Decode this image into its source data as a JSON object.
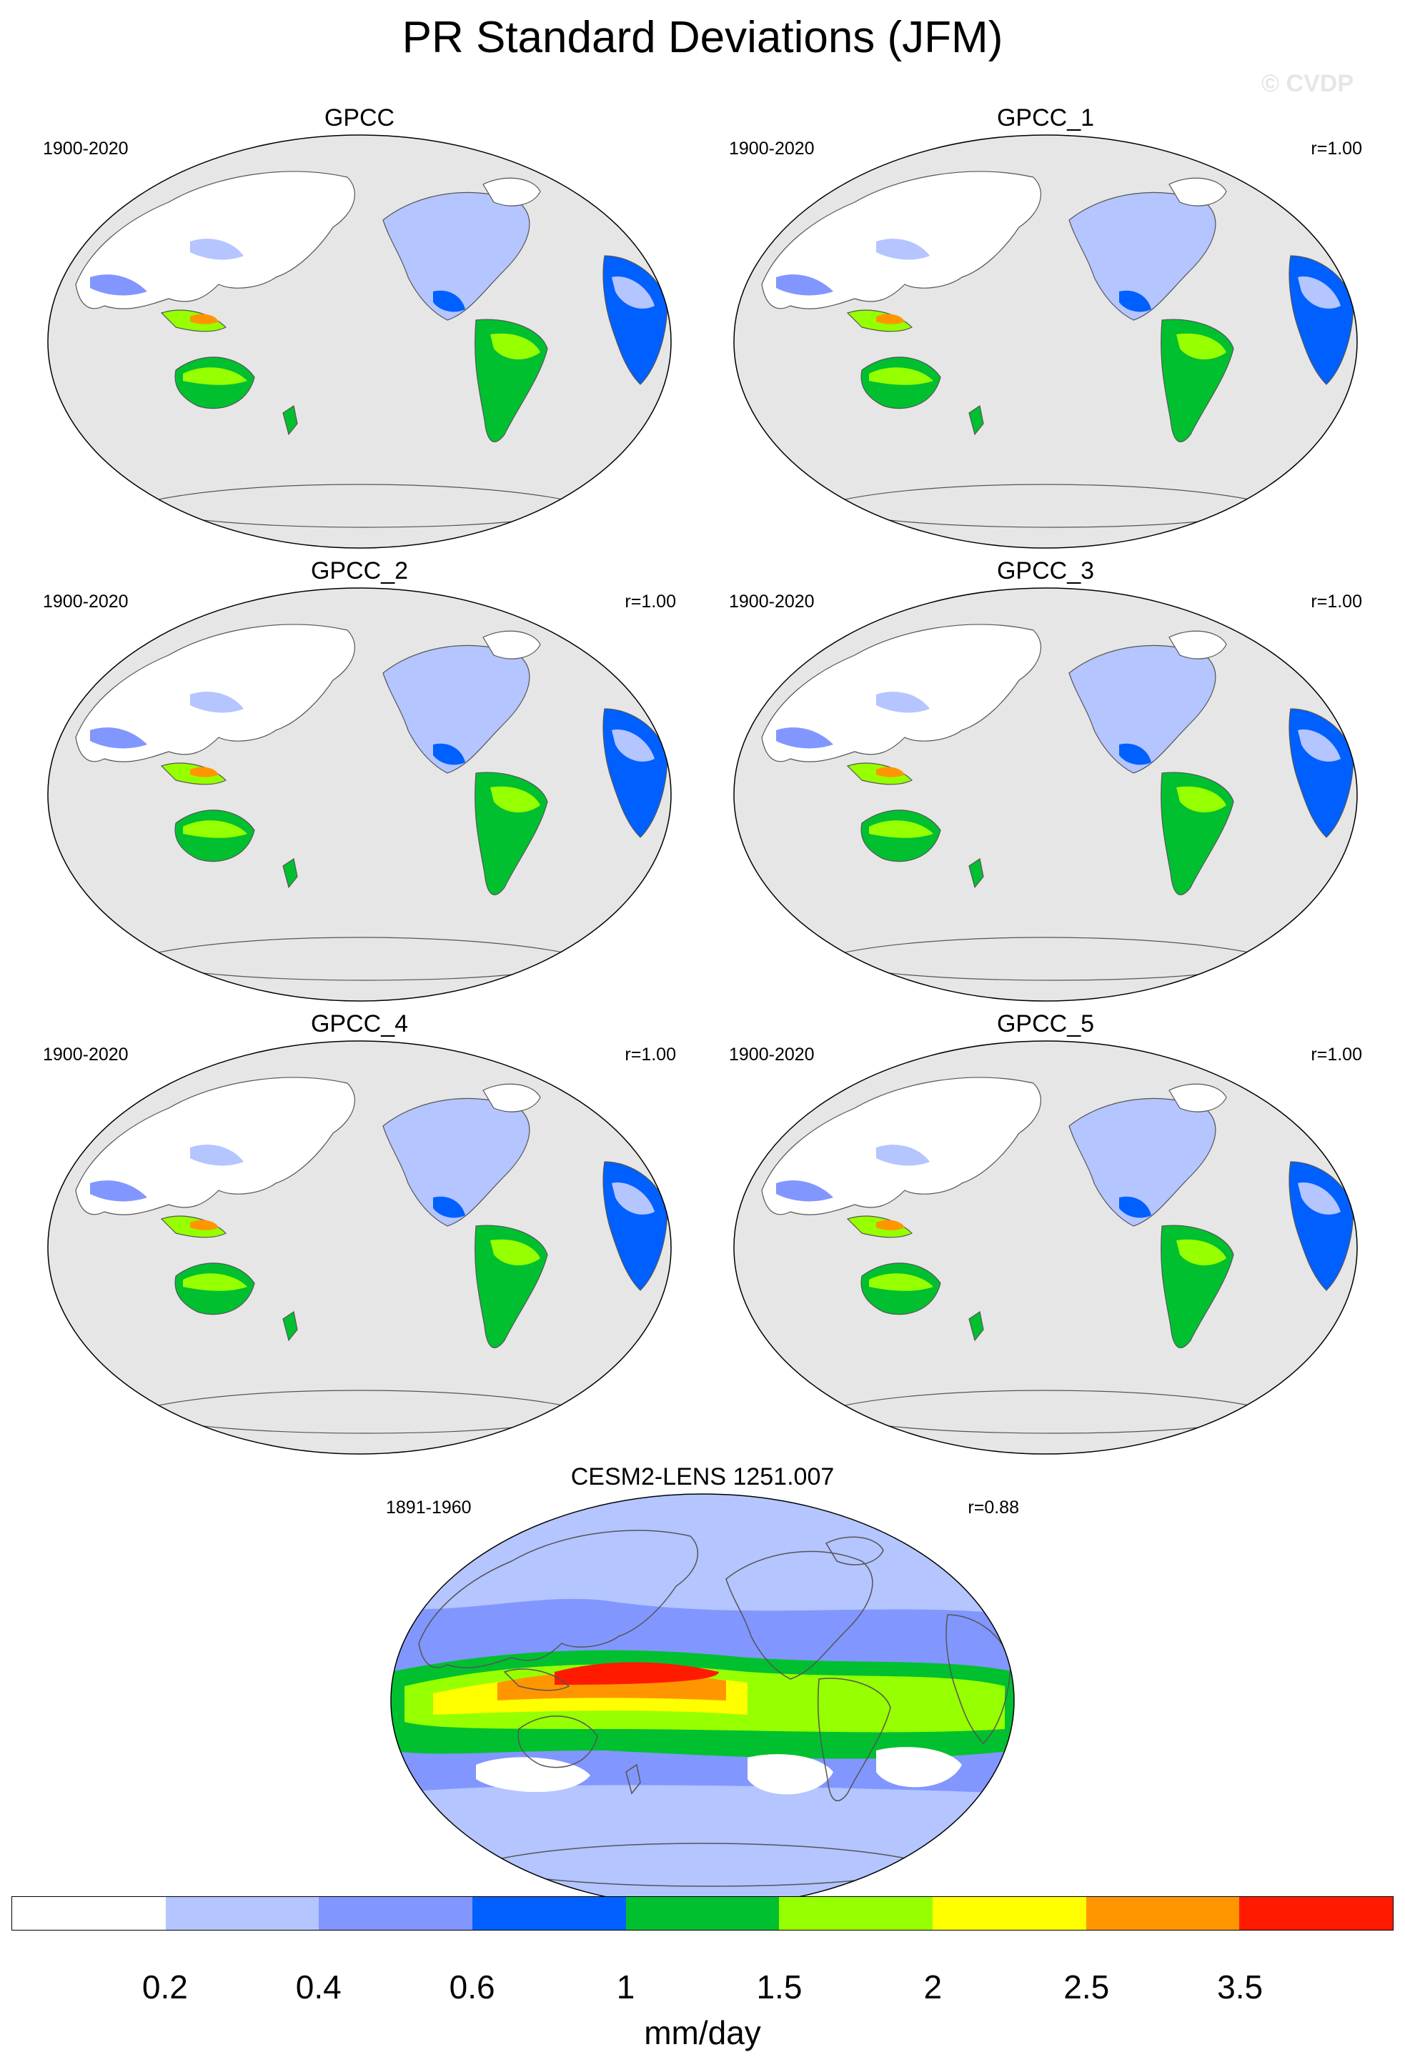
{
  "title": "PR Standard Deviations (JFM)",
  "watermark": "© CVDP",
  "panels": [
    {
      "title": "GPCC",
      "period": "1900-2020",
      "corr": ""
    },
    {
      "title": "GPCC_1",
      "period": "1900-2020",
      "corr": "r=1.00"
    },
    {
      "title": "GPCC_2",
      "period": "1900-2020",
      "corr": "r=1.00"
    },
    {
      "title": "GPCC_3",
      "period": "1900-2020",
      "corr": "r=1.00"
    },
    {
      "title": "GPCC_4",
      "period": "1900-2020",
      "corr": "r=1.00"
    },
    {
      "title": "GPCC_5",
      "period": "1900-2020",
      "corr": "r=1.00"
    },
    {
      "title": "CESM2-LENS 1251.007",
      "period": "1891-1960",
      "corr": "r=0.88"
    }
  ],
  "colorbar": {
    "colors": [
      "#ffffff",
      "#b4c5ff",
      "#8296ff",
      "#0060ff",
      "#00c030",
      "#96ff00",
      "#ffff00",
      "#ff9600",
      "#ff1a00"
    ],
    "ticks": [
      "0.2",
      "0.4",
      "0.6",
      "1",
      "1.5",
      "2",
      "2.5",
      "3.5"
    ],
    "units": "mm/day"
  },
  "map_style": {
    "ocean": "#e6e6e6",
    "coast": "#555555"
  }
}
